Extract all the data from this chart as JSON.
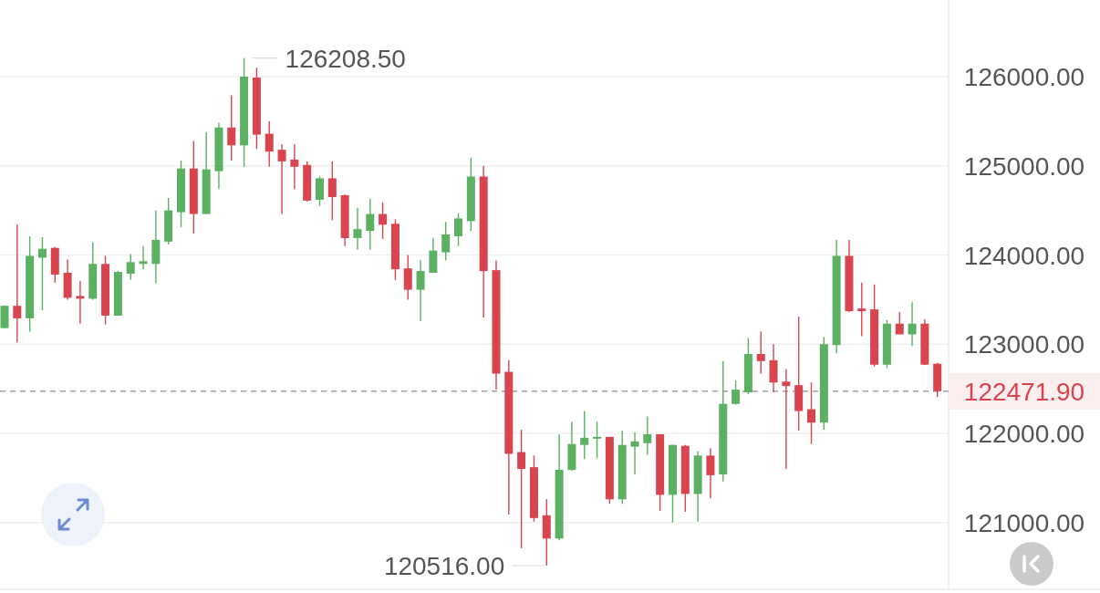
{
  "chart_data": {
    "type": "candlestick",
    "categories": [
      null,
      null,
      null,
      null,
      null,
      null,
      null,
      null,
      null,
      null,
      null,
      null,
      null,
      null,
      null,
      null,
      null,
      null,
      null,
      null,
      null,
      null,
      null,
      null,
      null,
      null,
      null,
      null,
      null,
      null,
      null,
      null,
      null,
      null,
      null,
      null,
      null,
      null,
      null,
      null,
      null,
      null,
      null,
      null,
      null,
      null,
      null,
      null,
      null,
      null,
      null,
      null,
      null,
      null,
      null,
      null,
      null,
      null,
      null,
      null,
      null,
      null,
      null,
      null,
      null,
      null,
      null,
      null,
      null,
      null,
      null,
      null,
      null,
      null,
      null
    ],
    "ohlc": [
      [
        123180,
        123430,
        123180,
        123430
      ],
      [
        123430,
        124340,
        123020,
        123290
      ],
      [
        123290,
        124210,
        123140,
        123990
      ],
      [
        123970,
        124200,
        123380,
        124070
      ],
      [
        124080,
        124090,
        123690,
        123780
      ],
      [
        123800,
        123950,
        123500,
        123520
      ],
      [
        123540,
        123710,
        123230,
        123510
      ],
      [
        123510,
        124140,
        123500,
        123900
      ],
      [
        123900,
        123990,
        123220,
        123320
      ],
      [
        123320,
        123820,
        123320,
        123810
      ],
      [
        123790,
        124010,
        123720,
        123920
      ],
      [
        123900,
        124100,
        123840,
        123930
      ],
      [
        123900,
        124500,
        123680,
        124170
      ],
      [
        124150,
        124640,
        124120,
        124500
      ],
      [
        124480,
        125060,
        124310,
        124970
      ],
      [
        124970,
        125280,
        124240,
        124460
      ],
      [
        124460,
        125380,
        124460,
        124960
      ],
      [
        124940,
        125480,
        124740,
        125430
      ],
      [
        125430,
        125790,
        125060,
        125230
      ],
      [
        125230,
        126208.5,
        124990,
        126000
      ],
      [
        125990,
        126100,
        125190,
        125350
      ],
      [
        125360,
        125500,
        124990,
        125160
      ],
      [
        125180,
        125240,
        124460,
        125050
      ],
      [
        125070,
        125240,
        124740,
        124990
      ],
      [
        125010,
        125050,
        124600,
        124610
      ],
      [
        124620,
        124880,
        124550,
        124860
      ],
      [
        124860,
        125050,
        124390,
        124650
      ],
      [
        124670,
        124680,
        124100,
        124190
      ],
      [
        124190,
        124530,
        124060,
        124290
      ],
      [
        124270,
        124630,
        124060,
        124460
      ],
      [
        124460,
        124590,
        124180,
        124340
      ],
      [
        124350,
        124400,
        123720,
        123840
      ],
      [
        123850,
        124000,
        123500,
        123610
      ],
      [
        123610,
        123940,
        123260,
        123820
      ],
      [
        123800,
        124190,
        123800,
        124050
      ],
      [
        124030,
        124370,
        123940,
        124230
      ],
      [
        124210,
        124470,
        124100,
        124410
      ],
      [
        124380,
        125090,
        124270,
        124880
      ],
      [
        124880,
        125000,
        123300,
        123820
      ],
      [
        123830,
        123940,
        122490,
        122670
      ],
      [
        122690,
        122820,
        121090,
        121770
      ],
      [
        121790,
        122040,
        120710,
        121600
      ],
      [
        121620,
        121750,
        121010,
        121050
      ],
      [
        121080,
        121260,
        120516,
        120820
      ],
      [
        120820,
        121990,
        120800,
        121590
      ],
      [
        121590,
        122130,
        121580,
        121880
      ],
      [
        121870,
        122250,
        121710,
        121950
      ],
      [
        121940,
        122130,
        121720,
        121960
      ],
      [
        121960,
        121960,
        121210,
        121260
      ],
      [
        121260,
        122030,
        121210,
        121870
      ],
      [
        121850,
        122010,
        121540,
        121910
      ],
      [
        121890,
        122190,
        121760,
        121990
      ],
      [
        121990,
        121990,
        121130,
        121310
      ],
      [
        121310,
        121870,
        121000,
        121870
      ],
      [
        121860,
        121870,
        121120,
        121320
      ],
      [
        121320,
        121800,
        121010,
        121750
      ],
      [
        121750,
        121830,
        121270,
        121530
      ],
      [
        121540,
        122810,
        121460,
        122330
      ],
      [
        122330,
        122590,
        122320,
        122490
      ],
      [
        122460,
        123070,
        122440,
        122890
      ],
      [
        122890,
        123140,
        122670,
        122810
      ],
      [
        122820,
        123000,
        122460,
        122570
      ],
      [
        122580,
        122720,
        121600,
        122530
      ],
      [
        122540,
        123310,
        122030,
        122250
      ],
      [
        122270,
        122570,
        121880,
        122120
      ],
      [
        122120,
        123080,
        122040,
        123000
      ],
      [
        122990,
        124170,
        122900,
        123990
      ],
      [
        123990,
        124170,
        123360,
        123370
      ],
      [
        123400,
        123690,
        123090,
        123370
      ],
      [
        123390,
        123670,
        122750,
        122770
      ],
      [
        122770,
        123270,
        122730,
        123230
      ],
      [
        123230,
        123360,
        123110,
        123110
      ],
      [
        123110,
        123470,
        122980,
        123230
      ],
      [
        123230,
        123280,
        122770,
        122770
      ],
      [
        122780,
        122790,
        122410,
        122471.9
      ]
    ],
    "colors": [
      "#5bb062",
      "#d8454f",
      "#5bb062",
      "#5bb062",
      "#d8454f",
      "#d8454f",
      "#d8454f",
      "#5bb062",
      "#d8454f",
      "#5bb062",
      "#5bb062",
      "#5bb062",
      "#5bb062",
      "#5bb062",
      "#5bb062",
      "#d8454f",
      "#5bb062",
      "#5bb062",
      "#d8454f",
      "#5bb062",
      "#d8454f",
      "#d8454f",
      "#d8454f",
      "#d8454f",
      "#d8454f",
      "#5bb062",
      "#d8454f",
      "#d8454f",
      "#5bb062",
      "#5bb062",
      "#d8454f",
      "#d8454f",
      "#d8454f",
      "#5bb062",
      "#5bb062",
      "#5bb062",
      "#5bb062",
      "#5bb062",
      "#d8454f",
      "#d8454f",
      "#d8454f",
      "#d8454f",
      "#d8454f",
      "#d8454f",
      "#5bb062",
      "#5bb062",
      "#5bb062",
      "#5bb062",
      "#d8454f",
      "#5bb062",
      "#5bb062",
      "#5bb062",
      "#d8454f",
      "#5bb062",
      "#d8454f",
      "#5bb062",
      "#d8454f",
      "#5bb062",
      "#5bb062",
      "#5bb062",
      "#d8454f",
      "#d8454f",
      "#d8454f",
      "#d8454f",
      "#d8454f",
      "#5bb062",
      "#5bb062",
      "#d8454f",
      "#d8454f",
      "#d8454f",
      "#5bb062",
      "#d8454f",
      "#5bb062",
      "#d8454f",
      "#d8454f"
    ],
    "ylim": [
      120250,
      126860
    ],
    "yticks": [
      {
        "value": 121000,
        "label": "121000.00"
      },
      {
        "value": 122000,
        "label": "122000.00"
      },
      {
        "value": 123000,
        "label": "123000.00"
      },
      {
        "value": 124000,
        "label": "124000.00"
      },
      {
        "value": 125000,
        "label": "125000.00"
      },
      {
        "value": 126000,
        "label": "126000.00"
      }
    ],
    "grid": "y",
    "tick_labels": "y",
    "ref_lines": [
      {
        "axis": "y",
        "value": 122471.9,
        "label": "122471.90",
        "color": "#8c8c8c",
        "line_style": "dashed"
      }
    ],
    "annotations": [
      "126208.50",
      "120516.00"
    ]
  }
}
